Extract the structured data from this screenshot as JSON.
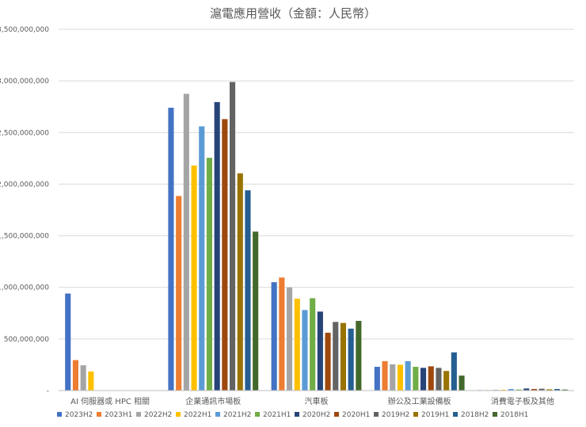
{
  "chart_data": {
    "type": "bar",
    "title": "滬電應用營收（金額：人民幣）",
    "xlabel": "",
    "ylabel": "",
    "ylim": [
      0,
      3500000000
    ],
    "yticks": [
      {
        "value": 0,
        "label": "-"
      },
      {
        "value": 500000000,
        "label": "500,000,000"
      },
      {
        "value": 1000000000,
        "label": "1,000,000,000"
      },
      {
        "value": 1500000000,
        "label": "1,500,000,000"
      },
      {
        "value": 2000000000,
        "label": "2,000,000,000"
      },
      {
        "value": 2500000000,
        "label": "2,500,000,000"
      },
      {
        "value": 3000000000,
        "label": "3,000,000,000"
      },
      {
        "value": 3500000000,
        "label": "3,500,000,000"
      }
    ],
    "grid": true,
    "legend_position": "bottom",
    "categories": [
      "AI 伺服器或 HPC 相關",
      "企業通訊市場板",
      "汽車板",
      "辦公及工業設備板",
      "消費電子板及其他"
    ],
    "series": [
      {
        "name": "2023H2",
        "color": "#4472c4",
        "values": [
          940000000,
          2740000000,
          1050000000,
          230000000,
          5000000
        ]
      },
      {
        "name": "2023H1",
        "color": "#ed7d31",
        "values": [
          295000000,
          1885000000,
          1095000000,
          285000000,
          5000000
        ]
      },
      {
        "name": "2022H2",
        "color": "#a5a5a5",
        "values": [
          245000000,
          2875000000,
          1000000000,
          255000000,
          8000000
        ]
      },
      {
        "name": "2022H1",
        "color": "#ffc000",
        "values": [
          185000000,
          2180000000,
          890000000,
          250000000,
          8000000
        ]
      },
      {
        "name": "2021H2",
        "color": "#5b9bd5",
        "values": [
          null,
          2560000000,
          780000000,
          285000000,
          15000000
        ]
      },
      {
        "name": "2021H1",
        "color": "#70ad47",
        "values": [
          null,
          2255000000,
          895000000,
          230000000,
          10000000
        ]
      },
      {
        "name": "2020H2",
        "color": "#264478",
        "values": [
          null,
          2795000000,
          765000000,
          220000000,
          20000000
        ]
      },
      {
        "name": "2020H1",
        "color": "#9e480e",
        "values": [
          null,
          2630000000,
          560000000,
          235000000,
          15000000
        ]
      },
      {
        "name": "2019H2",
        "color": "#636363",
        "values": [
          null,
          2990000000,
          665000000,
          220000000,
          18000000
        ]
      },
      {
        "name": "2019H1",
        "color": "#997300",
        "values": [
          null,
          2105000000,
          655000000,
          190000000,
          12000000
        ]
      },
      {
        "name": "2018H2",
        "color": "#255e91",
        "values": [
          null,
          1940000000,
          600000000,
          370000000,
          15000000
        ]
      },
      {
        "name": "2018H1",
        "color": "#43682b",
        "values": [
          null,
          1540000000,
          675000000,
          145000000,
          10000000
        ]
      }
    ]
  }
}
